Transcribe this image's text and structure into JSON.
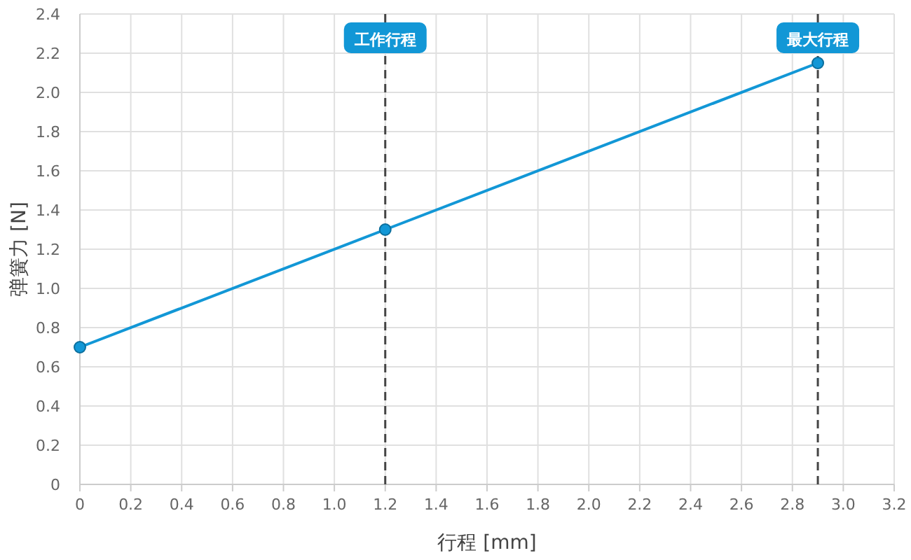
{
  "chart_data": {
    "type": "line",
    "xlabel": "行程 [mm]",
    "ylabel": "弹簧力 [N]",
    "x": [
      0,
      1.2,
      2.9
    ],
    "series": [
      {
        "color": "#1297d6",
        "values": [
          0.7,
          1.3,
          2.15
        ]
      }
    ],
    "xlim": [
      0,
      3.2
    ],
    "xticks": [
      0,
      0.2,
      0.4,
      0.6,
      0.8,
      {
        "value": 1,
        "label": "1.0"
      },
      1.2,
      1.4,
      1.6,
      1.8,
      {
        "value": 2,
        "label": "2.0"
      },
      2.2,
      2.4,
      2.6,
      2.8,
      {
        "value": 3,
        "label": "3.0"
      },
      3.2
    ],
    "ylim": [
      0,
      2.4
    ],
    "yticks": [
      0,
      0.2,
      0.4,
      0.6,
      0.8,
      {
        "value": 1,
        "label": "1.0"
      },
      1.2,
      1.4,
      1.6,
      1.8,
      {
        "value": 2,
        "label": "2.0"
      },
      2.2,
      2.4
    ],
    "grid": true,
    "marker": "circle",
    "line_style": "solid",
    "ref_lines": [
      {
        "axis": "x",
        "value": 1.2,
        "label": "工作行程",
        "color": "#444444",
        "line_style": "dashed"
      },
      {
        "axis": "x",
        "value": 2.9,
        "label": "最大行程",
        "color": "#444444",
        "line_style": "dashed"
      }
    ]
  }
}
